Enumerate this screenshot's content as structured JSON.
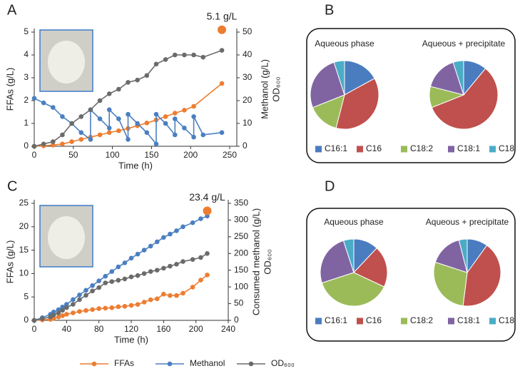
{
  "chart_data": [
    {
      "type": "line",
      "panel": "A",
      "xlabel": "Time (h)",
      "ylabel": "FFAs (g/L)",
      "y2label": [
        "Methanol (g/L)",
        "OD₆₀₀"
      ],
      "xlim": [
        0,
        250
      ],
      "xticks": [
        0,
        50,
        100,
        150,
        200,
        250
      ],
      "ylim": [
        0,
        5
      ],
      "yticks": [
        0,
        1,
        2,
        3,
        4,
        5
      ],
      "y2lim": [
        0,
        50
      ],
      "y2ticks": [
        0,
        10,
        20,
        30,
        40,
        50
      ],
      "series": [
        {
          "color": "#ed7d31",
          "axis": "y",
          "x": [
            0,
            12,
            24,
            36,
            48,
            60,
            72,
            84,
            96,
            108,
            120,
            132,
            144,
            156,
            168,
            180,
            192,
            204,
            240
          ],
          "values": [
            0,
            0.02,
            0.05,
            0.1,
            0.2,
            0.3,
            0.4,
            0.5,
            0.6,
            0.68,
            0.78,
            0.9,
            1.02,
            1.15,
            1.3,
            1.45,
            1.58,
            1.75,
            2.75
          ]
        },
        {
          "color": "#4a7fc1",
          "axis": "y2",
          "x": [
            0,
            12,
            24,
            36,
            48,
            60,
            72,
            72,
            84,
            96,
            96,
            108,
            120,
            120,
            132,
            144,
            156,
            156,
            168,
            180,
            180,
            192,
            204,
            204,
            216,
            240
          ],
          "values": [
            21,
            19,
            17,
            13,
            10,
            6,
            3,
            16,
            12,
            8,
            16,
            12,
            3,
            14,
            10,
            6,
            1,
            14,
            10,
            5,
            12,
            8,
            4,
            13,
            5,
            6
          ]
        },
        {
          "color": "#6b6b6b",
          "axis": "y2",
          "x": [
            0,
            12,
            24,
            36,
            48,
            60,
            72,
            84,
            96,
            108,
            120,
            132,
            144,
            156,
            168,
            180,
            192,
            204,
            216,
            240
          ],
          "values": [
            0,
            1,
            2,
            5,
            10,
            13,
            16,
            20,
            23,
            25,
            28,
            29,
            31,
            36,
            38,
            40,
            40,
            40,
            39,
            42
          ]
        }
      ],
      "annotations": [
        {
          "text": "5.1 g/L",
          "x": 240,
          "y": 5.1,
          "color": "#ed7d31"
        }
      ]
    },
    {
      "type": "pie",
      "panel": "B",
      "categories": [
        "C16:1",
        "C16",
        "C18:2",
        "C18:1",
        "C18"
      ],
      "colors": [
        "#4a7cc0",
        "#c0504d",
        "#9bbb59",
        "#8064a2",
        "#4bacc6"
      ],
      "pies": [
        {
          "title": "Aqueous phase",
          "values": [
            17,
            37,
            15,
            26,
            5
          ]
        },
        {
          "title": "Aqueous + precipitate",
          "values": [
            11,
            58,
            10,
            16,
            5
          ]
        }
      ]
    },
    {
      "type": "line",
      "panel": "C",
      "xlabel": "Time (h)",
      "ylabel": "FFAs (g/L)",
      "y2label": [
        "Consumed methanol (g/L)",
        "OD₆₀₀"
      ],
      "legend": "bottom",
      "xlim": [
        0,
        240
      ],
      "xticks": [
        0,
        40,
        80,
        120,
        160,
        200,
        240
      ],
      "ylim": [
        0,
        25
      ],
      "yticks": [
        0,
        5,
        10,
        15,
        20,
        25
      ],
      "y2lim": [
        0,
        350
      ],
      "y2ticks": [
        0,
        50,
        100,
        150,
        200,
        250,
        300,
        350
      ],
      "x": [
        0,
        10,
        20,
        24,
        30,
        35,
        40,
        48,
        56,
        64,
        72,
        80,
        88,
        96,
        104,
        112,
        120,
        128,
        136,
        144,
        152,
        160,
        168,
        176,
        184,
        196,
        206,
        214
      ],
      "series": [
        {
          "name": "FFAs",
          "color": "#ed7d31",
          "axis": "y",
          "values": [
            0,
            0.1,
            0.2,
            0.4,
            0.7,
            1.0,
            1.3,
            1.6,
            1.9,
            2.1,
            2.3,
            2.5,
            2.6,
            2.7,
            2.9,
            3.0,
            3.2,
            3.4,
            3.9,
            4.4,
            4.6,
            5.6,
            5.3,
            5.3,
            5.8,
            7.1,
            8.6,
            9.7
          ]
        },
        {
          "name": "Methanol",
          "color": "#4a7fc1",
          "axis": "y2",
          "values": [
            0,
            8,
            18,
            25,
            32,
            40,
            48,
            62,
            76,
            90,
            104,
            118,
            132,
            146,
            160,
            172,
            186,
            198,
            210,
            222,
            235,
            248,
            258,
            268,
            280,
            292,
            304,
            312
          ]
        },
        {
          "name": "OD₆₀₀",
          "color": "#6b6b6b",
          "axis": "y2",
          "values": [
            0,
            5,
            10,
            16,
            22,
            30,
            38,
            48,
            62,
            75,
            88,
            98,
            112,
            116,
            120,
            124,
            130,
            134,
            140,
            146,
            150,
            156,
            162,
            168,
            176,
            182,
            188,
            200
          ]
        }
      ],
      "annotations": [
        {
          "text": "23.4 g/L",
          "x": 214,
          "y": 23.4,
          "color": "#ed7d31"
        }
      ]
    },
    {
      "type": "pie",
      "panel": "D",
      "categories": [
        "C16:1",
        "C16",
        "C18:2",
        "C18:1",
        "C18"
      ],
      "colors": [
        "#4a7cc0",
        "#c0504d",
        "#9bbb59",
        "#8064a2",
        "#4bacc6"
      ],
      "pies": [
        {
          "title": "Aqueous phase",
          "values": [
            12,
            20,
            38,
            25,
            5
          ]
        },
        {
          "title": "Aqueous + precipitate",
          "values": [
            10,
            42,
            28,
            16,
            4
          ]
        }
      ]
    }
  ]
}
